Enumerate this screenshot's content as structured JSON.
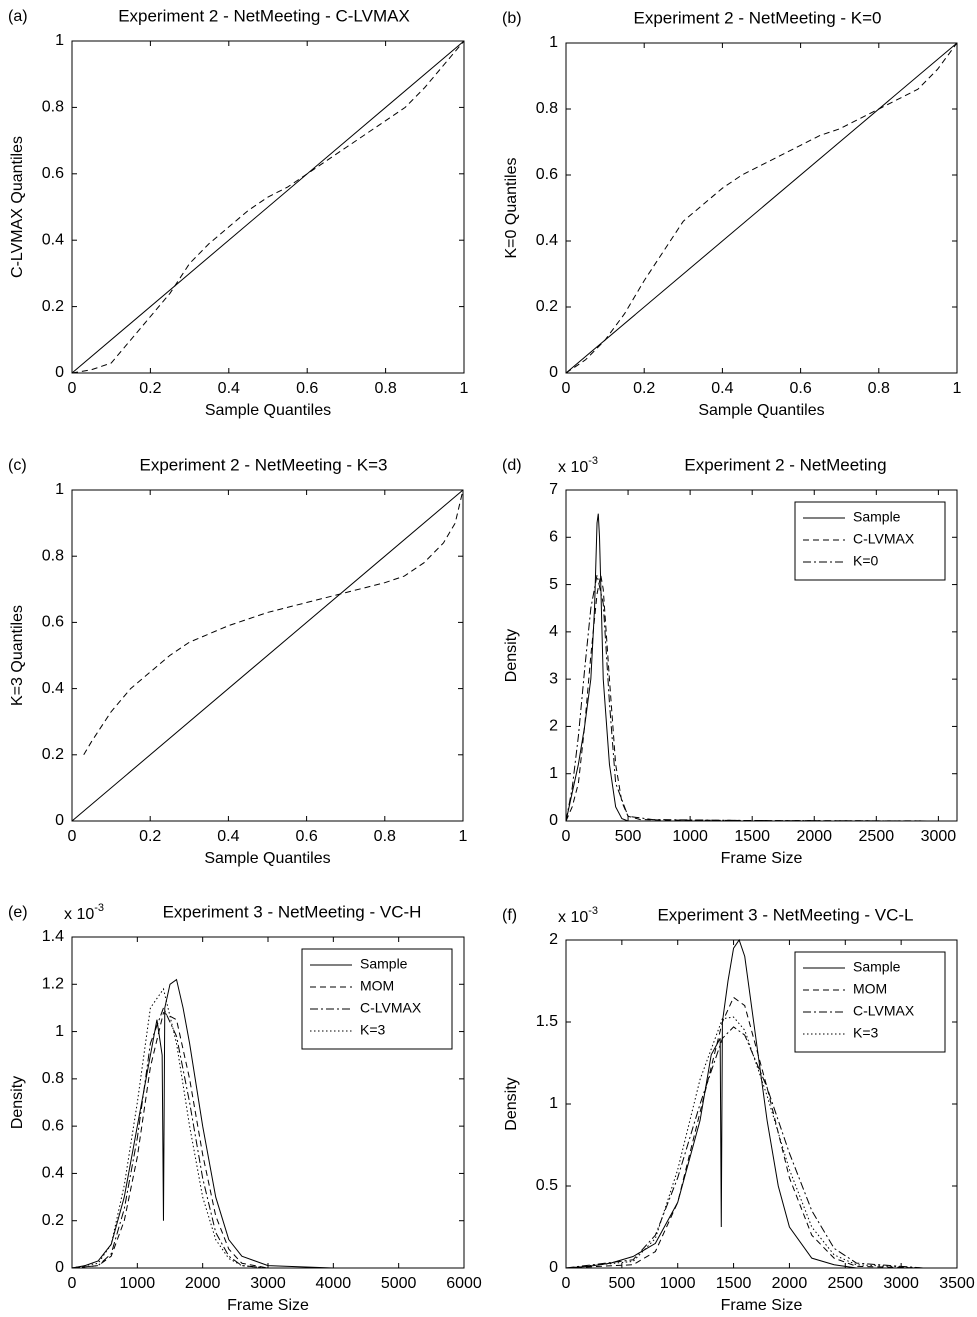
{
  "chart_data": [
    {
      "type": "line",
      "panel_label": "(a)",
      "title": "Experiment 2 - NetMeeting - C-LVMAX",
      "x_label": "Sample Quantiles",
      "y_label": "C-LVMAX Quantiles",
      "xlim": [
        0,
        1
      ],
      "ylim": [
        0,
        1
      ],
      "xticks": [
        0,
        0.2,
        0.4,
        0.6,
        0.8,
        1
      ],
      "yticks": [
        0,
        0.2,
        0.4,
        0.6,
        0.8,
        1
      ],
      "series": [
        {
          "color": "#000000",
          "style": "solid",
          "x": [
            0,
            1
          ],
          "values": [
            0,
            1
          ]
        },
        {
          "color": "#000000",
          "style": "dashed",
          "x": [
            0,
            0.05,
            0.1,
            0.15,
            0.2,
            0.25,
            0.3,
            0.35,
            0.4,
            0.45,
            0.5,
            0.55,
            0.6,
            0.65,
            0.7,
            0.75,
            0.8,
            0.85,
            0.9,
            0.95,
            1
          ],
          "values": [
            0,
            0.01,
            0.03,
            0.1,
            0.17,
            0.24,
            0.33,
            0.39,
            0.44,
            0.49,
            0.53,
            0.56,
            0.6,
            0.64,
            0.68,
            0.72,
            0.76,
            0.8,
            0.86,
            0.93,
            1
          ]
        }
      ]
    },
    {
      "type": "line",
      "panel_label": "(b)",
      "title": "Experiment 2 - NetMeeting - K=0",
      "x_label": "Sample Quantiles",
      "y_label": "K=0 Quantiles",
      "xlim": [
        0,
        1
      ],
      "ylim": [
        0,
        1
      ],
      "xticks": [
        0,
        0.2,
        0.4,
        0.6,
        0.8,
        1
      ],
      "yticks": [
        0,
        0.2,
        0.4,
        0.6,
        0.8,
        1
      ],
      "series": [
        {
          "color": "#000000",
          "style": "solid",
          "x": [
            0,
            1
          ],
          "values": [
            0,
            1
          ]
        },
        {
          "color": "#000000",
          "style": "dashed",
          "x": [
            0,
            0.05,
            0.1,
            0.15,
            0.2,
            0.25,
            0.3,
            0.35,
            0.4,
            0.45,
            0.5,
            0.55,
            0.6,
            0.65,
            0.7,
            0.75,
            0.8,
            0.85,
            0.9,
            0.95,
            1
          ],
          "values": [
            0,
            0.04,
            0.1,
            0.18,
            0.28,
            0.37,
            0.46,
            0.51,
            0.56,
            0.6,
            0.63,
            0.66,
            0.69,
            0.72,
            0.74,
            0.77,
            0.8,
            0.83,
            0.86,
            0.92,
            1
          ]
        }
      ]
    },
    {
      "type": "line",
      "panel_label": "(c)",
      "title": "Experiment 2 - NetMeeting - K=3",
      "x_label": "Sample Quantiles",
      "y_label": "K=3 Quantiles",
      "xlim": [
        0,
        1
      ],
      "ylim": [
        0,
        1
      ],
      "xticks": [
        0,
        0.2,
        0.4,
        0.6,
        0.8,
        1
      ],
      "yticks": [
        0,
        0.2,
        0.4,
        0.6,
        0.8,
        1
      ],
      "series": [
        {
          "color": "#000000",
          "style": "solid",
          "x": [
            0,
            1
          ],
          "values": [
            0,
            1
          ]
        },
        {
          "color": "#000000",
          "style": "dashed",
          "x": [
            0.03,
            0.05,
            0.1,
            0.15,
            0.2,
            0.25,
            0.3,
            0.4,
            0.5,
            0.6,
            0.7,
            0.8,
            0.85,
            0.9,
            0.95,
            0.98,
            1
          ],
          "values": [
            0.2,
            0.24,
            0.33,
            0.4,
            0.45,
            0.5,
            0.54,
            0.59,
            0.63,
            0.66,
            0.69,
            0.72,
            0.74,
            0.78,
            0.84,
            0.9,
            1
          ]
        }
      ]
    },
    {
      "type": "line",
      "panel_label": "(d)",
      "title": "Experiment 2 - NetMeeting",
      "x_label": "Frame Size",
      "y_label": "Density",
      "y_multiplier": "x 10",
      "y_multiplier_exp": "-3",
      "legend": "upper right",
      "xlim": [
        0,
        3150
      ],
      "ylim": [
        0,
        7
      ],
      "xticks": [
        0,
        500,
        1000,
        1500,
        2000,
        2500,
        3000
      ],
      "yticks": [
        0,
        1,
        2,
        3,
        4,
        5,
        6,
        7
      ],
      "series": [
        {
          "name": "Sample",
          "color": "#000000",
          "style": "solid",
          "x": [
            0,
            50,
            100,
            150,
            200,
            230,
            250,
            260,
            270,
            280,
            300,
            350,
            400,
            450,
            500,
            600,
            1000,
            2000,
            3100
          ],
          "values": [
            0,
            0.6,
            1.2,
            2,
            3,
            4.5,
            6.3,
            6.5,
            6,
            5,
            3,
            1.2,
            0.3,
            0.05,
            0,
            0,
            0,
            0,
            0
          ]
        },
        {
          "name": "C-LVMAX",
          "color": "#000000",
          "style": "dashed",
          "x": [
            0,
            50,
            100,
            150,
            200,
            250,
            280,
            300,
            350,
            400,
            450,
            500,
            600,
            800,
            1500,
            3100
          ],
          "values": [
            0,
            0.3,
            0.8,
            2,
            3.5,
            4.8,
            5.2,
            4.9,
            3,
            1.2,
            0.4,
            0.1,
            0.03,
            0.02,
            0.01,
            0
          ]
        },
        {
          "name": "K=0",
          "color": "#000000",
          "style": "dashdot",
          "x": [
            0,
            50,
            100,
            150,
            200,
            250,
            300,
            350,
            400,
            500,
            700,
            1500,
            3100
          ],
          "values": [
            0,
            0.7,
            1.8,
            3.2,
            4.5,
            5.2,
            4.6,
            2.5,
            0.8,
            0.1,
            0.03,
            0.01,
            0
          ]
        }
      ]
    },
    {
      "type": "line",
      "panel_label": "(e)",
      "title": "Experiment 3 - NetMeeting - VC-H",
      "x_label": "Frame Size",
      "y_label": "Density",
      "y_multiplier": "x 10",
      "y_multiplier_exp": "-3",
      "legend": "upper right",
      "xlim": [
        0,
        6000
      ],
      "ylim": [
        0,
        1.4
      ],
      "xticks": [
        0,
        1000,
        2000,
        3000,
        4000,
        5000,
        6000
      ],
      "yticks": [
        0,
        0.2,
        0.4,
        0.6,
        0.8,
        1,
        1.2,
        1.4
      ],
      "series": [
        {
          "name": "Sample",
          "color": "#000000",
          "style": "solid",
          "x": [
            0,
            200,
            400,
            600,
            800,
            1000,
            1200,
            1300,
            1380,
            1400,
            1420,
            1500,
            1600,
            1700,
            1800,
            2000,
            2200,
            2400,
            2600,
            3000,
            4000,
            5500
          ],
          "values": [
            0,
            0.01,
            0.03,
            0.1,
            0.3,
            0.6,
            0.9,
            1.05,
            0.9,
            0.2,
            1.1,
            1.2,
            1.22,
            1.1,
            0.95,
            0.6,
            0.3,
            0.12,
            0.05,
            0.01,
            0,
            0
          ]
        },
        {
          "name": "MOM",
          "color": "#000000",
          "style": "dashed",
          "x": [
            0,
            400,
            600,
            800,
            1000,
            1200,
            1400,
            1600,
            1800,
            2000,
            2200,
            2400,
            2600,
            3000,
            4000,
            5500
          ],
          "values": [
            0,
            0.01,
            0.05,
            0.2,
            0.47,
            0.85,
            1.08,
            1.05,
            0.8,
            0.48,
            0.22,
            0.08,
            0.02,
            0,
            0,
            0
          ]
        },
        {
          "name": "C-LVMAX",
          "color": "#000000",
          "style": "dashdot",
          "x": [
            0,
            400,
            600,
            800,
            1000,
            1200,
            1400,
            1600,
            1800,
            2000,
            2200,
            2400,
            2600,
            3000,
            4000,
            5500
          ],
          "values": [
            0,
            0.01,
            0.06,
            0.25,
            0.55,
            0.95,
            1.1,
            0.98,
            0.7,
            0.38,
            0.15,
            0.05,
            0.01,
            0,
            0,
            0
          ]
        },
        {
          "name": "K=3",
          "color": "#000000",
          "style": "dotted",
          "x": [
            0,
            400,
            600,
            800,
            1000,
            1200,
            1400,
            1600,
            1800,
            2000,
            2200,
            2400,
            2600,
            3000,
            4000,
            5500
          ],
          "values": [
            0,
            0.02,
            0.1,
            0.35,
            0.7,
            1.1,
            1.18,
            0.95,
            0.6,
            0.3,
            0.12,
            0.04,
            0.01,
            0,
            0,
            0
          ]
        }
      ]
    },
    {
      "type": "line",
      "panel_label": "(f)",
      "title": "Experiment 3 - NetMeeting - VC-L",
      "x_label": "Frame Size",
      "y_label": "Density",
      "y_multiplier": "x 10",
      "y_multiplier_exp": "-3",
      "legend": "upper right",
      "xlim": [
        0,
        3500
      ],
      "ylim": [
        0,
        2
      ],
      "xticks": [
        0,
        500,
        1000,
        1500,
        2000,
        2500,
        3000,
        3500
      ],
      "yticks": [
        0,
        0.5,
        1,
        1.5,
        2
      ],
      "series": [
        {
          "name": "Sample",
          "color": "#000000",
          "style": "solid",
          "x": [
            0,
            200,
            400,
            600,
            800,
            1000,
            1200,
            1300,
            1380,
            1390,
            1400,
            1450,
            1500,
            1550,
            1600,
            1700,
            1800,
            1900,
            2000,
            2200,
            2400,
            2600,
            3200
          ],
          "values": [
            0,
            0.01,
            0.03,
            0.07,
            0.15,
            0.4,
            0.9,
            1.3,
            1.4,
            0.25,
            1.5,
            1.75,
            1.95,
            2,
            1.9,
            1.4,
            0.9,
            0.5,
            0.25,
            0.06,
            0.02,
            0,
            0
          ]
        },
        {
          "name": "MOM",
          "color": "#000000",
          "style": "dashed",
          "x": [
            0,
            600,
            800,
            1000,
            1200,
            1400,
            1500,
            1600,
            1800,
            2000,
            2200,
            2400,
            2600,
            3200
          ],
          "values": [
            0,
            0.02,
            0.1,
            0.4,
            0.95,
            1.5,
            1.65,
            1.6,
            1.1,
            0.55,
            0.2,
            0.06,
            0.01,
            0
          ]
        },
        {
          "name": "C-LVMAX",
          "color": "#000000",
          "style": "dashdot",
          "x": [
            0,
            600,
            800,
            1000,
            1200,
            1400,
            1500,
            1600,
            1800,
            2000,
            2200,
            2400,
            2600,
            3200
          ],
          "values": [
            0,
            0.05,
            0.2,
            0.55,
            1.0,
            1.4,
            1.47,
            1.42,
            1.1,
            0.7,
            0.35,
            0.12,
            0.03,
            0
          ]
        },
        {
          "name": "K=3",
          "color": "#000000",
          "style": "dotted",
          "x": [
            0,
            600,
            800,
            1000,
            1200,
            1400,
            1500,
            1600,
            1800,
            2000,
            2200,
            2400,
            2600,
            3200
          ],
          "values": [
            0,
            0.04,
            0.18,
            0.6,
            1.15,
            1.52,
            1.53,
            1.45,
            1.05,
            0.6,
            0.25,
            0.08,
            0.02,
            0
          ]
        }
      ]
    }
  ]
}
